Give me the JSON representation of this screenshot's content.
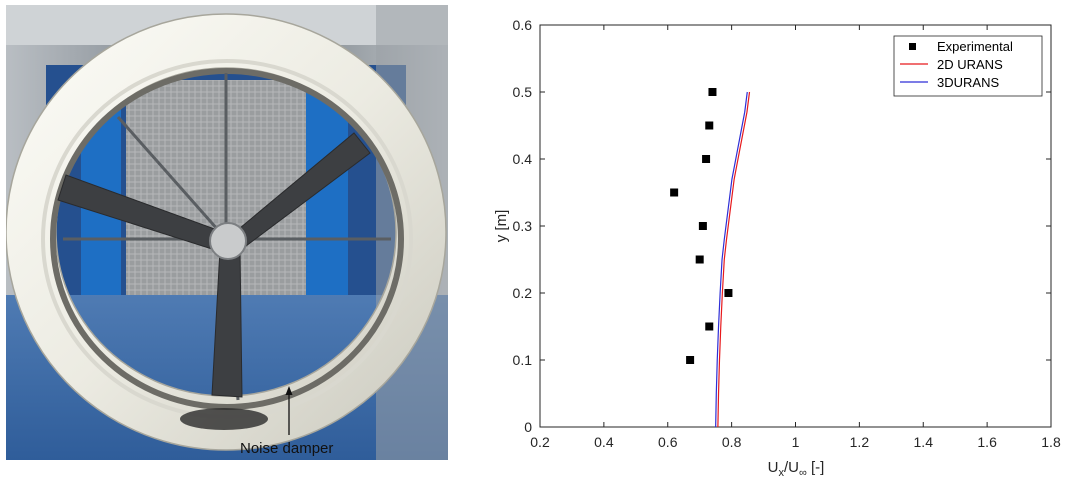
{
  "photo": {
    "annotation": "Noise damper"
  },
  "chart_data": {
    "type": "scatter",
    "xlabel_main": "U",
    "xlabel_sub1": "x",
    "xlabel_mid": "/U",
    "xlabel_sub2": "∞",
    "xlabel_unit": " [-]",
    "ylabel": "y [m]",
    "xlim": [
      0.2,
      1.8
    ],
    "ylim": [
      0,
      0.6
    ],
    "xticks": [
      "0.2",
      "0.4",
      "0.6",
      "0.8",
      "1",
      "1.2",
      "1.4",
      "1.6",
      "1.8"
    ],
    "yticks": [
      "0",
      "0.1",
      "0.2",
      "0.3",
      "0.4",
      "0.5",
      "0.6"
    ],
    "grid": false,
    "legend_position": "top-right",
    "series": [
      {
        "name": "Experimental",
        "kind": "marker",
        "color": "#000000",
        "x": [
          0.67,
          0.73,
          0.79,
          0.7,
          0.71,
          0.62,
          0.72,
          0.73,
          0.74
        ],
        "y": [
          0.1,
          0.15,
          0.2,
          0.25,
          0.3,
          0.35,
          0.4,
          0.45,
          0.5
        ]
      },
      {
        "name": "2D URANS",
        "kind": "line",
        "color": "#e8191c",
        "x": [
          0.757,
          0.759,
          0.762,
          0.766,
          0.771,
          0.777,
          0.784,
          0.792,
          0.8,
          0.808,
          0.816,
          0.824,
          0.832,
          0.84,
          0.848,
          0.856
        ],
        "y": [
          0.0,
          0.05,
          0.1,
          0.15,
          0.2,
          0.25,
          0.28,
          0.31,
          0.34,
          0.37,
          0.39,
          0.41,
          0.43,
          0.45,
          0.47,
          0.5
        ]
      },
      {
        "name": "3DURANS",
        "kind": "line",
        "color": "#2e2ed6",
        "x": [
          0.75,
          0.752,
          0.755,
          0.759,
          0.764,
          0.77,
          0.777,
          0.785,
          0.793,
          0.801,
          0.809,
          0.817,
          0.825,
          0.833,
          0.841,
          0.849
        ],
        "y": [
          0.0,
          0.05,
          0.1,
          0.15,
          0.2,
          0.25,
          0.28,
          0.31,
          0.34,
          0.37,
          0.39,
          0.41,
          0.43,
          0.45,
          0.47,
          0.5
        ]
      }
    ]
  }
}
